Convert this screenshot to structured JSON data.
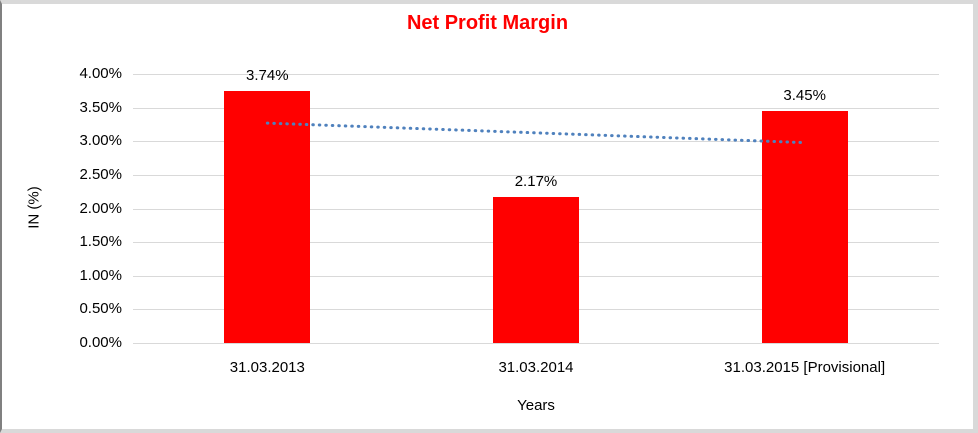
{
  "frame": {
    "background": "#ffffff",
    "frame_color": "#d9d9d9",
    "left_edge_color": "#808080"
  },
  "chart_data": {
    "type": "bar",
    "title": "Net Profit Margin",
    "title_color": "#ff0000",
    "categories": [
      "31.03.2013",
      "31.03.2014",
      "31.03.2015 [Provisional]"
    ],
    "values": [
      3.74,
      2.17,
      3.45
    ],
    "value_labels": [
      "3.74%",
      "2.17%",
      "3.45%"
    ],
    "bar_color": "#ff0000",
    "xlabel": "Years",
    "ylabel": "IN (%)",
    "ylim": [
      0,
      4
    ],
    "ytick_step": 0.5,
    "yticks": [
      {
        "label": "0.00%",
        "value": 0
      },
      {
        "label": "0.50%",
        "value": 0.5
      },
      {
        "label": "1.00%",
        "value": 1
      },
      {
        "label": "1.50%",
        "value": 1.5
      },
      {
        "label": "2.00%",
        "value": 2
      },
      {
        "label": "2.50%",
        "value": 2.5
      },
      {
        "label": "3.00%",
        "value": 3
      },
      {
        "label": "3.50%",
        "value": 3.5
      },
      {
        "label": "4.00%",
        "value": 4
      }
    ],
    "grid": true,
    "gridline_color": "#d9d9d9",
    "legend": "none",
    "trendline": {
      "type": "linear",
      "style": "dotted",
      "color": "#4f81bd",
      "start_value": 3.27,
      "end_value": 2.98
    }
  }
}
